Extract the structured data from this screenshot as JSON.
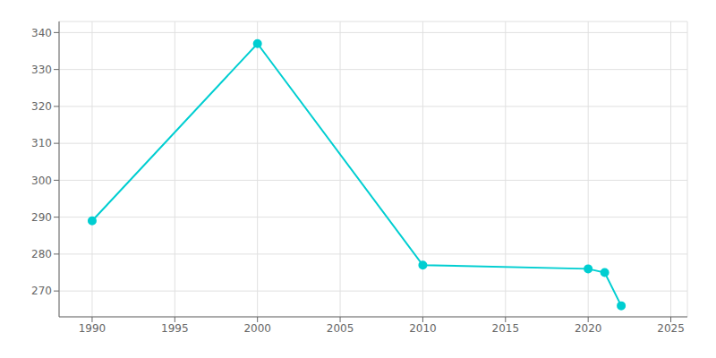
{
  "chart_data": {
    "type": "line",
    "x": [
      1990,
      2000,
      2010,
      2020,
      2021,
      2022
    ],
    "values": [
      289,
      337,
      277,
      276,
      275,
      266
    ],
    "color": "#00CED1",
    "marker": "circle",
    "xlim": [
      1988,
      2026
    ],
    "ylim": [
      263,
      343
    ],
    "xticks": [
      1990,
      1995,
      2000,
      2005,
      2010,
      2015,
      2020,
      2025
    ],
    "yticks": [
      270,
      280,
      290,
      300,
      310,
      320,
      330,
      340
    ],
    "grid": true
  }
}
